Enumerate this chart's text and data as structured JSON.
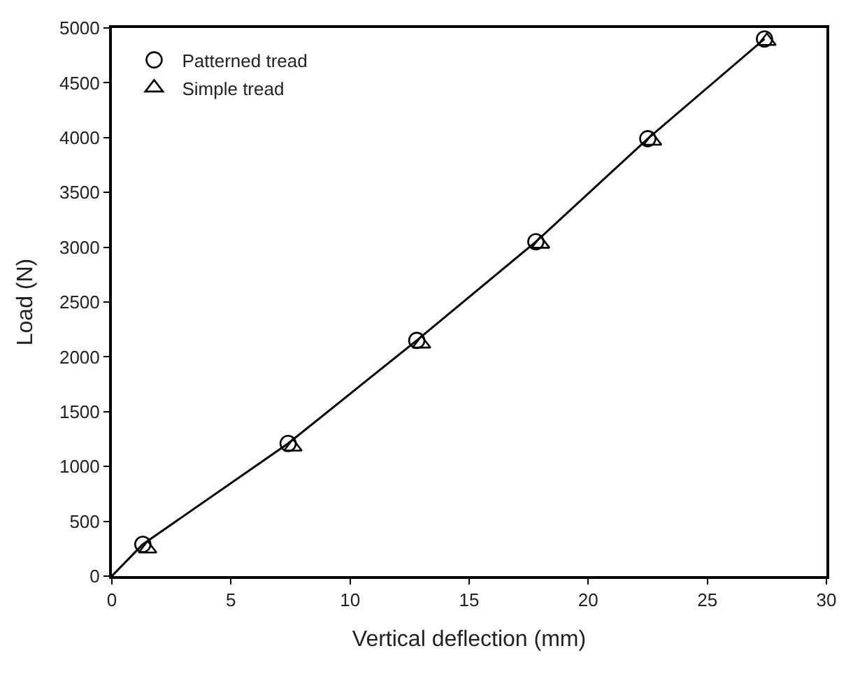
{
  "chart_data": {
    "type": "scatter",
    "xlabel": "Vertical deflection (mm)",
    "ylabel": "Load (N)",
    "xlim": [
      0,
      30
    ],
    "xticks": [
      0,
      5,
      10,
      15,
      20,
      25,
      30
    ],
    "ylim": [
      0,
      5000
    ],
    "yticks": [
      0,
      500,
      1000,
      1500,
      2000,
      2500,
      3000,
      3500,
      4000,
      4500,
      5000
    ],
    "legend": "top left",
    "series": [
      {
        "type": "line",
        "color": "#000000",
        "marker": "none",
        "line_style": "solid",
        "x": [
          0,
          1.3,
          7.4,
          12.8,
          17.8,
          22.5,
          27.4
        ],
        "values": [
          0,
          290,
          1210,
          2150,
          3050,
          3990,
          4900
        ]
      },
      {
        "name": "Patterned tread",
        "color": "#000000",
        "marker": "circle",
        "x": [
          1.3,
          7.4,
          12.8,
          17.8,
          22.5,
          27.4
        ],
        "values": [
          290,
          1210,
          2150,
          3050,
          3990,
          4900
        ]
      },
      {
        "name": "Simple tread",
        "color": "#000000",
        "marker": "triangle",
        "x": [
          1.5,
          7.6,
          13.0,
          18.0,
          22.7,
          27.5
        ],
        "values": [
          250,
          1180,
          2120,
          3030,
          3970,
          4880
        ]
      }
    ]
  }
}
